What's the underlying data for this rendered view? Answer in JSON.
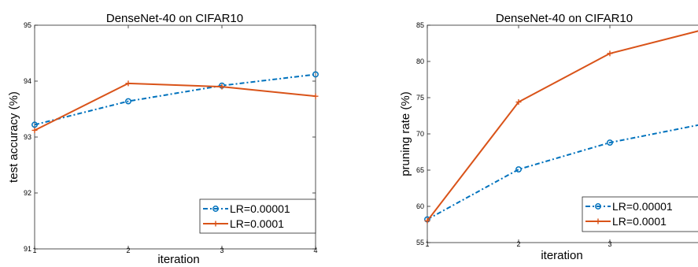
{
  "chart_data": [
    {
      "type": "line",
      "title": "DenseNet-40 on CIFAR10",
      "xlabel": "iteration",
      "ylabel": "test accuracy (%)",
      "xlim": [
        1,
        4
      ],
      "ylim": [
        91,
        95
      ],
      "x_ticks": [
        "1",
        "2",
        "3",
        "4"
      ],
      "y_ticks": [
        "91",
        "92",
        "93",
        "94",
        "95"
      ],
      "x": [
        1,
        2,
        3,
        4
      ],
      "legend": "bottom-right",
      "grid": false,
      "series": [
        {
          "name": "LR=0.00001",
          "values": [
            93.22,
            93.64,
            93.92,
            94.12
          ],
          "color": "#0072BD",
          "line_style": "dash-dot",
          "marker": "circle"
        },
        {
          "name": "LR=0.0001",
          "values": [
            93.12,
            93.96,
            93.9,
            93.73
          ],
          "color": "#D95319",
          "line_style": "solid",
          "marker": "plus"
        }
      ]
    },
    {
      "type": "line",
      "title": "DenseNet-40 on CIFAR10",
      "xlabel": "iteration",
      "ylabel": "pruning rate (%)",
      "xlim": [
        1,
        4
      ],
      "ylim": [
        55,
        85
      ],
      "x_ticks": [
        "1",
        "2",
        "3",
        ""
      ],
      "y_ticks": [
        "55",
        "60",
        "65",
        "70",
        "75",
        "80",
        "85"
      ],
      "x": [
        1,
        2,
        3,
        4
      ],
      "legend": "bottom-right",
      "grid": false,
      "series": [
        {
          "name": "LR=0.00001",
          "values": [
            58.2,
            65.1,
            68.8,
            71.3
          ],
          "color": "#0072BD",
          "line_style": "dash-dot",
          "marker": "circle"
        },
        {
          "name": "LR=0.0001",
          "values": [
            58.0,
            74.4,
            81.1,
            84.3
          ],
          "color": "#D95319",
          "line_style": "solid",
          "marker": "plus"
        }
      ]
    }
  ]
}
